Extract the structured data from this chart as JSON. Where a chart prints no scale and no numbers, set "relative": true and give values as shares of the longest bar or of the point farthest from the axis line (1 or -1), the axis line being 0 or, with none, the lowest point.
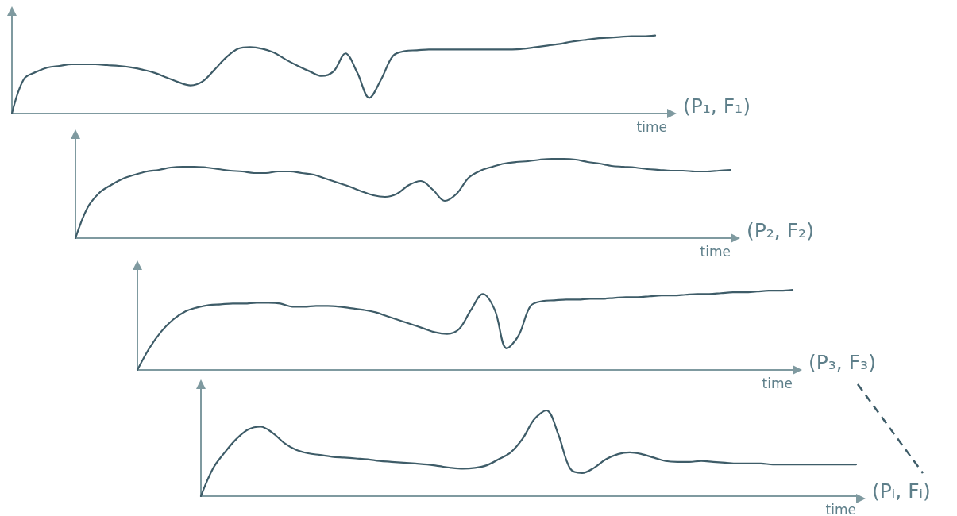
{
  "chart_data": [
    {
      "type": "line",
      "relative": true,
      "xlabel": "time",
      "annotations": [
        "(P₁, F₁)"
      ],
      "marker": "none",
      "line_style": "solid",
      "color": "#3e5c68",
      "categories": [
        null,
        null,
        null,
        null,
        null,
        null,
        null,
        null,
        null,
        null,
        null,
        null,
        null,
        null,
        null,
        null,
        null,
        null,
        null,
        null,
        null,
        null,
        null,
        null,
        null,
        null,
        null,
        null,
        null,
        null,
        null,
        null,
        null,
        null,
        null,
        null,
        null,
        null,
        null,
        null,
        null,
        null,
        null,
        null,
        null,
        null,
        null,
        null,
        null,
        null,
        null,
        null,
        null,
        null,
        null,
        null
      ],
      "values": [
        0,
        0.44,
        0.53,
        0.59,
        0.61,
        0.63,
        0.63,
        0.63,
        0.62,
        0.61,
        0.59,
        0.56,
        0.52,
        0.46,
        0.4,
        0.36,
        0.41,
        0.56,
        0.72,
        0.83,
        0.85,
        0.83,
        0.78,
        0.69,
        0.61,
        0.54,
        0.48,
        0.54,
        0.77,
        0.52,
        0.2,
        0.44,
        0.74,
        0.8,
        0.81,
        0.82,
        0.82,
        0.82,
        0.82,
        0.82,
        0.82,
        0.82,
        0.82,
        0.83,
        0.85,
        0.87,
        0.89,
        0.92,
        0.94,
        0.96,
        0.97,
        0.98,
        0.99,
        0.99,
        1,
        null
      ]
    },
    {
      "type": "line",
      "relative": true,
      "xlabel": "time",
      "annotations": [
        "(P₂, F₂)"
      ],
      "marker": "none",
      "line_style": "solid",
      "color": "#3e5c68",
      "categories": [
        null,
        null,
        null,
        null,
        null,
        null,
        null,
        null,
        null,
        null,
        null,
        null,
        null,
        null,
        null,
        null,
        null,
        null,
        null,
        null,
        null,
        null,
        null,
        null,
        null,
        null,
        null,
        null,
        null,
        null,
        null,
        null,
        null,
        null,
        null,
        null,
        null,
        null,
        null,
        null,
        null,
        null,
        null,
        null,
        null,
        null,
        null,
        null,
        null,
        null,
        null,
        null,
        null,
        null,
        null,
        null
      ],
      "values": [
        0,
        0.38,
        0.57,
        0.67,
        0.75,
        0.8,
        0.84,
        0.86,
        0.89,
        0.9,
        0.9,
        0.89,
        0.87,
        0.85,
        0.84,
        0.82,
        0.82,
        0.84,
        0.84,
        0.82,
        0.8,
        0.75,
        0.7,
        0.65,
        0.59,
        0.54,
        0.52,
        0.56,
        0.67,
        0.72,
        0.61,
        0.47,
        0.56,
        0.76,
        0.85,
        0.9,
        0.94,
        0.96,
        0.97,
        0.99,
        1,
        1,
        0.99,
        0.96,
        0.94,
        0.91,
        0.9,
        0.89,
        0.87,
        0.86,
        0.85,
        0.85,
        0.84,
        0.84,
        0.85,
        0.86
      ]
    },
    {
      "type": "line",
      "relative": true,
      "xlabel": "time",
      "annotations": [
        "(P₃, F₃)"
      ],
      "marker": "none",
      "line_style": "solid",
      "color": "#3e5c68",
      "categories": [
        null,
        null,
        null,
        null,
        null,
        null,
        null,
        null,
        null,
        null,
        null,
        null,
        null,
        null,
        null,
        null,
        null,
        null,
        null,
        null,
        null,
        null,
        null,
        null,
        null,
        null,
        null,
        null,
        null,
        null,
        null,
        null,
        null,
        null,
        null,
        null,
        null,
        null,
        null,
        null,
        null,
        null,
        null,
        null,
        null,
        null,
        null,
        null,
        null,
        null,
        null,
        null,
        null,
        null,
        null,
        null
      ],
      "values": [
        0,
        0.27,
        0.48,
        0.63,
        0.73,
        0.78,
        0.81,
        0.82,
        0.83,
        0.83,
        0.84,
        0.84,
        0.83,
        0.79,
        0.79,
        0.8,
        0.8,
        0.79,
        0.77,
        0.75,
        0.72,
        0.67,
        0.62,
        0.57,
        0.52,
        0.47,
        0.45,
        0.51,
        0.75,
        0.95,
        0.75,
        0.27,
        0.43,
        0.8,
        0.86,
        0.87,
        0.88,
        0.88,
        0.89,
        0.89,
        0.9,
        0.91,
        0.91,
        0.92,
        0.93,
        0.93,
        0.94,
        0.95,
        0.95,
        0.96,
        0.97,
        0.97,
        0.98,
        0.99,
        0.99,
        1
      ]
    },
    {
      "type": "line",
      "relative": true,
      "xlabel": "time",
      "annotations": [
        "(Pᵢ, Fᵢ)"
      ],
      "marker": "none",
      "line_style": "solid",
      "color": "#3e5c68",
      "categories": [
        null,
        null,
        null,
        null,
        null,
        null,
        null,
        null,
        null,
        null,
        null,
        null,
        null,
        null,
        null,
        null,
        null,
        null,
        null,
        null,
        null,
        null,
        null,
        null,
        null,
        null,
        null,
        null,
        null,
        null,
        null,
        null,
        null,
        null,
        null,
        null,
        null,
        null,
        null,
        null,
        null,
        null,
        null,
        null,
        null,
        null,
        null,
        null,
        null,
        null,
        null,
        null,
        null,
        null,
        null,
        null
      ],
      "values": [
        0,
        0.32,
        0.51,
        0.67,
        0.78,
        0.81,
        0.74,
        0.62,
        0.54,
        0.5,
        0.48,
        0.46,
        0.45,
        0.44,
        0.43,
        0.41,
        0.4,
        0.39,
        0.38,
        0.37,
        0.35,
        0.33,
        0.32,
        0.33,
        0.36,
        0.43,
        0.51,
        0.67,
        0.9,
        1,
        0.72,
        0.32,
        0.27,
        0.33,
        0.43,
        0.49,
        0.51,
        0.49,
        0.45,
        0.41,
        0.4,
        0.4,
        0.41,
        0.4,
        0.39,
        0.38,
        0.38,
        0.38,
        0.37,
        0.37,
        0.37,
        0.37,
        0.37,
        0.37,
        0.37,
        0.37
      ]
    }
  ]
}
